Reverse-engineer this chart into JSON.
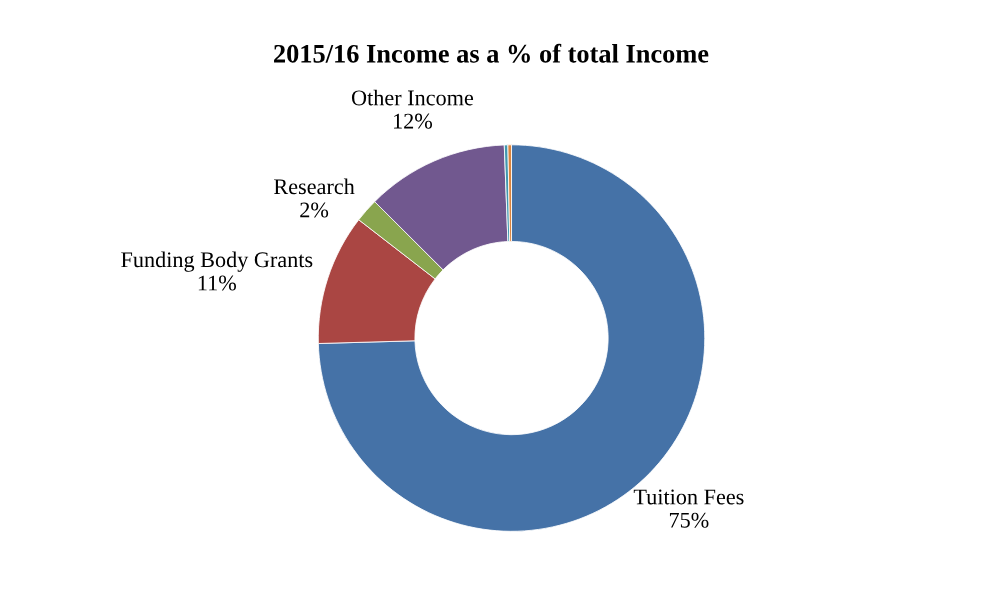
{
  "chart_data": {
    "type": "donut",
    "title": "2015/16 Income as a % of total Income",
    "categories": [
      "Tuition Fees",
      "Funding Body Grants",
      "Research",
      "Other Income",
      null,
      null
    ],
    "values": [
      75,
      11,
      2,
      12,
      0.3,
      0.3
    ],
    "value_labels": [
      "75%",
      "11%",
      "2%",
      "12%",
      null,
      null
    ],
    "colors": [
      "#4572a7",
      "#aa4643",
      "#89a54e",
      "#71588f",
      "#4198af",
      "#db843d"
    ],
    "legend": false
  }
}
